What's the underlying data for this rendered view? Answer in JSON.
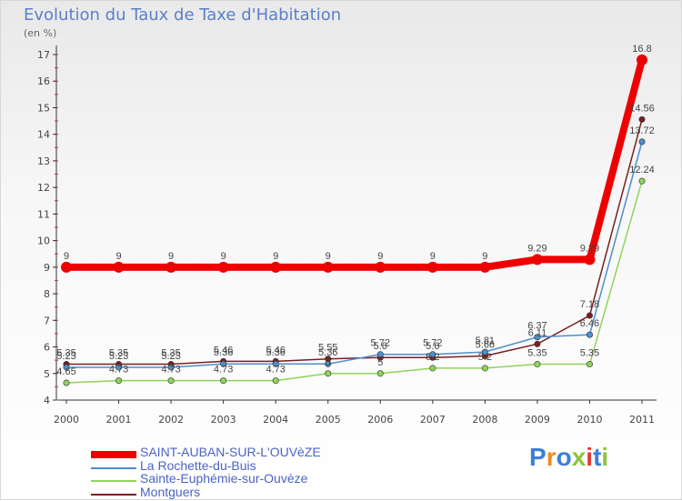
{
  "title": "Evolution du Taux de Taxe d'Habitation",
  "unit_label": "(en %)",
  "logo_text": "Proxiti",
  "colors": {
    "title": "#5b7fc9",
    "axis": "#333333",
    "label": "#444444"
  },
  "chart_data": {
    "type": "line",
    "title": "Evolution du Taux de Taxe d'Habitation",
    "ylabel": "(en %)",
    "xlabel": "",
    "categories": [
      "2000",
      "2001",
      "2002",
      "2003",
      "2004",
      "2005",
      "2006",
      "2007",
      "2008",
      "2009",
      "2010",
      "2011"
    ],
    "ylim": [
      4,
      17.5
    ],
    "yticks": [
      4,
      5,
      6,
      7,
      8,
      9,
      10,
      11,
      12,
      13,
      14,
      15,
      16,
      17
    ],
    "series": [
      {
        "name": "SAINT-AUBAN-SUR-L'OUVèZE",
        "color": "#ee0000",
        "values": [
          9,
          9,
          9,
          9,
          9,
          9,
          9,
          9,
          9,
          9.29,
          9.29,
          16.8
        ],
        "labels": [
          "9",
          "9",
          "9",
          "9",
          "9",
          "9",
          "9",
          "9",
          "9",
          "9.29",
          "9.29",
          "16.8"
        ]
      },
      {
        "name": "La Rochette-du-Buis",
        "color": "#4d8ecf",
        "values": [
          5.23,
          5.23,
          5.23,
          5.36,
          5.36,
          5.36,
          5.72,
          5.72,
          5.81,
          6.37,
          6.46,
          13.72
        ],
        "labels": [
          "5.23",
          "5.23",
          "5.23",
          "5.36",
          "5.36",
          "5.36",
          "5.72",
          "5.72",
          "5.81",
          "6.37",
          "6.46",
          "13.72"
        ]
      },
      {
        "name": "Sainte-Euphémie-sur-Ouvèze",
        "color": "#8fd45a",
        "values": [
          4.65,
          4.73,
          4.73,
          4.73,
          4.73,
          5,
          5,
          5.2,
          5.2,
          5.35,
          5.35,
          12.24
        ],
        "labels": [
          "4.65",
          "4.73",
          "4.73",
          "4.73",
          "4.73",
          "5",
          "5",
          "5.2",
          "5.2",
          "5.35",
          "5.35",
          "12.24"
        ]
      },
      {
        "name": "Montguers",
        "color": "#7a1f1f",
        "values": [
          5.35,
          5.35,
          5.35,
          5.46,
          5.46,
          5.55,
          5.6,
          5.6,
          5.66,
          6.11,
          7.18,
          14.56
        ],
        "labels": [
          "5.35",
          "5.35",
          "5.35",
          "5.46",
          "5.46",
          "5.55",
          "5.6",
          "5.6",
          "5.66",
          "6.11",
          "7.18",
          "14.56"
        ]
      }
    ],
    "legend_position": "bottom-left"
  }
}
